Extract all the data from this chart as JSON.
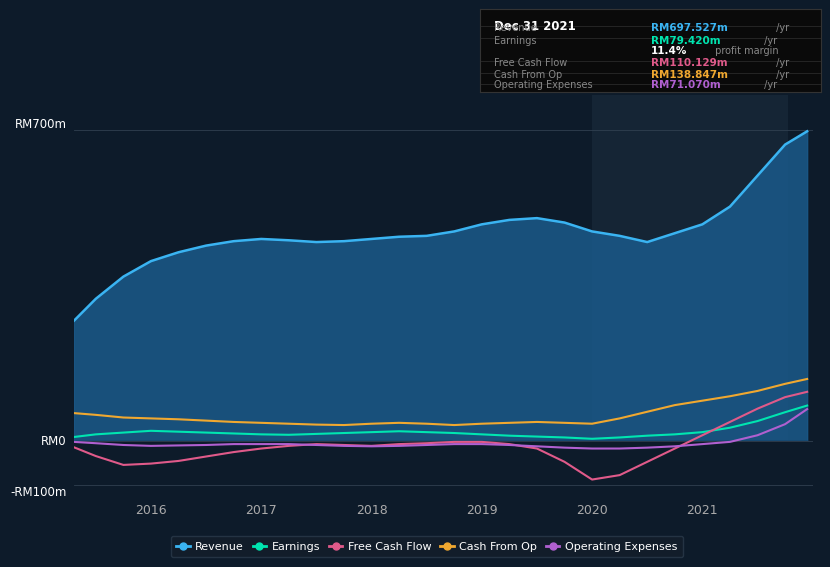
{
  "bg_color": "#0d1b2a",
  "plot_bg_color": "#0d1b2a",
  "highlight_bg": "#152535",
  "title_box": {
    "date": "Dec 31 2021",
    "rows": [
      {
        "label": "Revenue",
        "value": "RM697.527m",
        "color": "#3ab4f2",
        "suffix": " /yr"
      },
      {
        "label": "Earnings",
        "value": "RM79.420m",
        "color": "#00e5b0",
        "suffix": " /yr"
      },
      {
        "label": "",
        "value": "11.4%",
        "color": "#ffffff",
        "suffix": " profit margin"
      },
      {
        "label": "Free Cash Flow",
        "value": "RM110.129m",
        "color": "#e05a8a",
        "suffix": " /yr"
      },
      {
        "label": "Cash From Op",
        "value": "RM138.847m",
        "color": "#f0a830",
        "suffix": " /yr"
      },
      {
        "label": "Operating Expenses",
        "value": "RM71.070m",
        "color": "#b060d0",
        "suffix": " /yr"
      }
    ]
  },
  "ylabel_rm700": "RM700m",
  "ylabel_rm0": "RM0",
  "ylabel_rmneg": "-RM100m",
  "ylim": [
    -130,
    780
  ],
  "x_tick_labels": [
    "2016",
    "2017",
    "2018",
    "2019",
    "2020",
    "2021"
  ],
  "revenue": {
    "color": "#3ab4f2",
    "x": [
      2015.3,
      2015.5,
      2015.75,
      2016.0,
      2016.25,
      2016.5,
      2016.75,
      2017.0,
      2017.25,
      2017.5,
      2017.75,
      2018.0,
      2018.25,
      2018.5,
      2018.75,
      2019.0,
      2019.25,
      2019.5,
      2019.75,
      2020.0,
      2020.25,
      2020.5,
      2020.75,
      2021.0,
      2021.25,
      2021.5,
      2021.75,
      2021.95
    ],
    "y": [
      270,
      320,
      370,
      405,
      425,
      440,
      450,
      455,
      452,
      448,
      450,
      455,
      460,
      462,
      472,
      488,
      498,
      502,
      492,
      472,
      462,
      448,
      468,
      488,
      528,
      598,
      668,
      698
    ]
  },
  "earnings": {
    "color": "#00e5b0",
    "x": [
      2015.3,
      2015.5,
      2015.75,
      2016.0,
      2016.25,
      2016.5,
      2016.75,
      2017.0,
      2017.25,
      2017.5,
      2017.75,
      2018.0,
      2018.25,
      2018.5,
      2018.75,
      2019.0,
      2019.25,
      2019.5,
      2019.75,
      2020.0,
      2020.25,
      2020.5,
      2020.75,
      2021.0,
      2021.25,
      2021.5,
      2021.75,
      2021.95
    ],
    "y": [
      8,
      14,
      18,
      22,
      20,
      18,
      16,
      14,
      13,
      15,
      17,
      19,
      21,
      19,
      17,
      14,
      11,
      9,
      7,
      4,
      7,
      11,
      14,
      19,
      29,
      44,
      64,
      79
    ]
  },
  "free_cash_flow": {
    "color": "#e05a8a",
    "x": [
      2015.3,
      2015.5,
      2015.75,
      2016.0,
      2016.25,
      2016.5,
      2016.75,
      2017.0,
      2017.25,
      2017.5,
      2017.75,
      2018.0,
      2018.25,
      2018.5,
      2018.75,
      2019.0,
      2019.25,
      2019.5,
      2019.75,
      2020.0,
      2020.25,
      2020.5,
      2020.75,
      2021.0,
      2021.25,
      2021.5,
      2021.75,
      2021.95
    ],
    "y": [
      -15,
      -35,
      -55,
      -52,
      -46,
      -36,
      -26,
      -18,
      -12,
      -8,
      -10,
      -12,
      -8,
      -6,
      -3,
      -3,
      -8,
      -18,
      -48,
      -88,
      -78,
      -48,
      -18,
      12,
      42,
      72,
      98,
      110
    ]
  },
  "cash_from_op": {
    "color": "#f0a830",
    "x": [
      2015.3,
      2015.5,
      2015.75,
      2016.0,
      2016.25,
      2016.5,
      2016.75,
      2017.0,
      2017.25,
      2017.5,
      2017.75,
      2018.0,
      2018.25,
      2018.5,
      2018.75,
      2019.0,
      2019.25,
      2019.5,
      2019.75,
      2020.0,
      2020.25,
      2020.5,
      2020.75,
      2021.0,
      2021.25,
      2021.5,
      2021.75,
      2021.95
    ],
    "y": [
      62,
      58,
      52,
      50,
      48,
      45,
      42,
      40,
      38,
      36,
      35,
      38,
      40,
      38,
      35,
      38,
      40,
      42,
      40,
      38,
      50,
      65,
      80,
      90,
      100,
      112,
      128,
      139
    ]
  },
  "operating_expenses": {
    "color": "#b060d0",
    "x": [
      2015.3,
      2015.5,
      2015.75,
      2016.0,
      2016.25,
      2016.5,
      2016.75,
      2017.0,
      2017.25,
      2017.5,
      2017.75,
      2018.0,
      2018.25,
      2018.5,
      2018.75,
      2019.0,
      2019.25,
      2019.5,
      2019.75,
      2020.0,
      2020.25,
      2020.5,
      2020.75,
      2021.0,
      2021.25,
      2021.5,
      2021.75,
      2021.95
    ],
    "y": [
      -3,
      -6,
      -10,
      -12,
      -11,
      -10,
      -8,
      -8,
      -8,
      -10,
      -12,
      -13,
      -12,
      -10,
      -8,
      -8,
      -10,
      -13,
      -16,
      -18,
      -18,
      -16,
      -13,
      -8,
      -3,
      12,
      37,
      71
    ]
  },
  "legend": [
    {
      "label": "Revenue",
      "color": "#3ab4f2"
    },
    {
      "label": "Earnings",
      "color": "#00e5b0"
    },
    {
      "label": "Free Cash Flow",
      "color": "#e05a8a"
    },
    {
      "label": "Cash From Op",
      "color": "#f0a830"
    },
    {
      "label": "Operating Expenses",
      "color": "#b060d0"
    }
  ],
  "highlight_x_start": 2020.0,
  "highlight_x_end": 2021.78,
  "xmin": 2015.3,
  "xmax": 2022.0
}
